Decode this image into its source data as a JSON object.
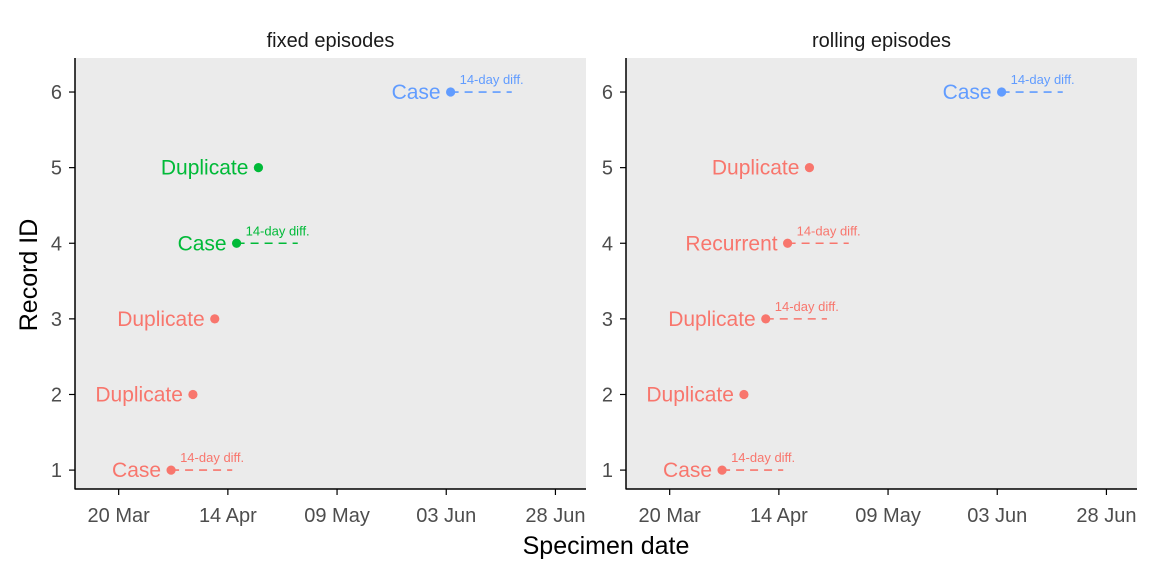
{
  "colors": {
    "red": "#F8766D",
    "green": "#00BA38",
    "blue": "#619CFF",
    "panel_bg": "#EBEBEB",
    "axis": "#000000",
    "tick_text": "#4D4D4D"
  },
  "chart_data": {
    "type": "scatter",
    "xlabel": "Specimen date",
    "ylabel": "Record ID",
    "x_ticks": [
      "20 Mar",
      "14 Apr",
      "09 May",
      "03 Jun",
      "28 Jun"
    ],
    "x_tick_days": [
      0,
      25,
      50,
      75,
      100
    ],
    "y_ticks": [
      "1",
      "2",
      "3",
      "4",
      "5",
      "6"
    ],
    "xlim_days": [
      -10,
      107
    ],
    "ylim": [
      0.75,
      6.45
    ],
    "window_label": "14-day diff.",
    "window_days": 14,
    "panels": [
      {
        "title": "fixed episodes",
        "points": [
          {
            "id": 1,
            "day": 12,
            "label": "Case",
            "color": "red",
            "window": true
          },
          {
            "id": 2,
            "day": 17,
            "label": "Duplicate",
            "color": "red",
            "window": false
          },
          {
            "id": 3,
            "day": 22,
            "label": "Duplicate",
            "color": "red",
            "window": false
          },
          {
            "id": 4,
            "day": 27,
            "label": "Case",
            "color": "green",
            "window": true
          },
          {
            "id": 5,
            "day": 32,
            "label": "Duplicate",
            "color": "green",
            "window": false
          },
          {
            "id": 6,
            "day": 76,
            "label": "Case",
            "color": "blue",
            "window": true
          }
        ]
      },
      {
        "title": "rolling episodes",
        "points": [
          {
            "id": 1,
            "day": 12,
            "label": "Case",
            "color": "red",
            "window": true
          },
          {
            "id": 2,
            "day": 17,
            "label": "Duplicate",
            "color": "red",
            "window": false
          },
          {
            "id": 3,
            "day": 22,
            "label": "Duplicate",
            "color": "red",
            "window": true
          },
          {
            "id": 4,
            "day": 27,
            "label": "Recurrent",
            "color": "red",
            "window": true
          },
          {
            "id": 5,
            "day": 32,
            "label": "Duplicate",
            "color": "red",
            "window": false
          },
          {
            "id": 6,
            "day": 76,
            "label": "Case",
            "color": "blue",
            "window": true
          }
        ]
      }
    ]
  }
}
